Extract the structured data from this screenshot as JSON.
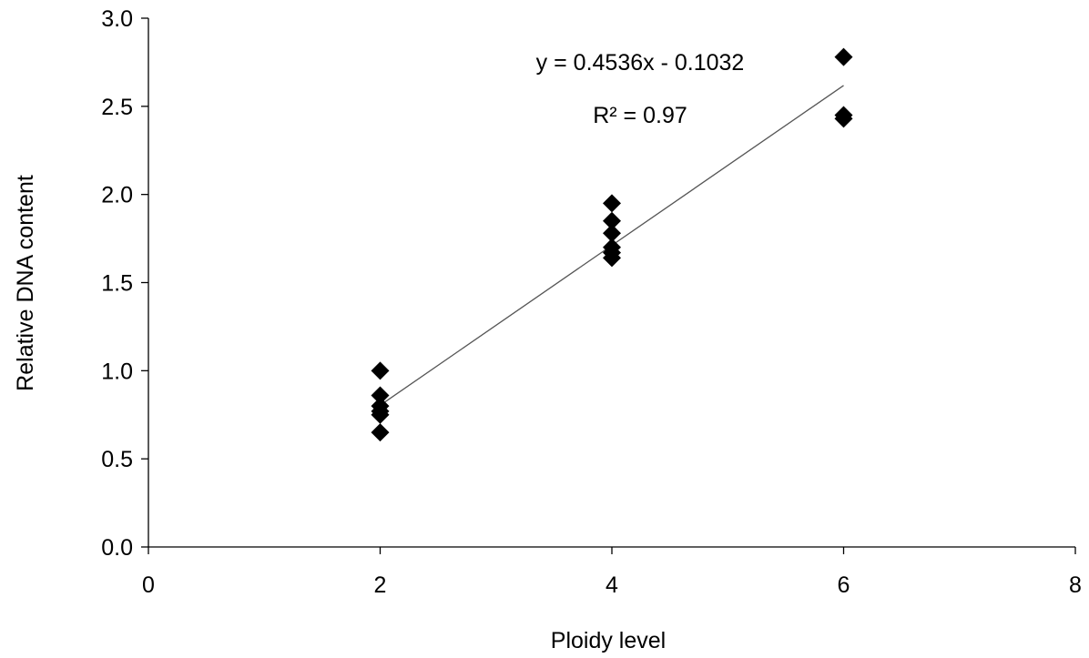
{
  "chart_data": {
    "type": "scatter",
    "title": "",
    "xlabel": "Ploidy level",
    "ylabel": "Relative DNA content",
    "xlim": [
      0,
      8
    ],
    "ylim": [
      0.0,
      3.0
    ],
    "xticks": [
      "0",
      "2",
      "4",
      "6",
      "8"
    ],
    "yticks": [
      "0.0",
      "0.5",
      "1.0",
      "1.5",
      "2.0",
      "2.5",
      "3.0"
    ],
    "grid": false,
    "legend": "none",
    "series": [
      {
        "marker": "diamond",
        "color": "#000000",
        "points": [
          [
            2,
            1.0
          ],
          [
            2,
            0.86
          ],
          [
            2,
            0.8
          ],
          [
            2,
            0.77
          ],
          [
            2,
            0.75
          ],
          [
            2,
            0.65
          ],
          [
            4,
            1.95
          ],
          [
            4,
            1.85
          ],
          [
            4,
            1.78
          ],
          [
            4,
            1.7
          ],
          [
            4,
            1.67
          ],
          [
            4,
            1.64
          ],
          [
            6,
            2.78
          ],
          [
            6,
            2.45
          ],
          [
            6,
            2.43
          ]
        ]
      }
    ],
    "trendline": {
      "type": "linear",
      "slope": 0.4536,
      "intercept": -0.1032,
      "x_range": [
        2,
        6
      ],
      "color": "#555555"
    },
    "annotations": {
      "equation": "y = 0.4536x - 0.1032",
      "r_squared": "R² = 0.97"
    }
  }
}
